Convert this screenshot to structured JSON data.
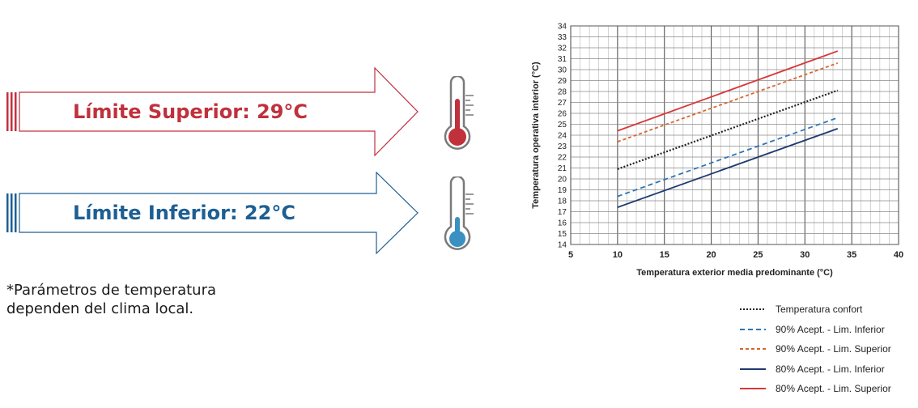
{
  "upper_limit": {
    "label": "Límite Superior: 29°C",
    "color": "#c0313c",
    "icon": "thermometer-high-icon"
  },
  "lower_limit": {
    "label": "Límite Inferior: 22°C",
    "color": "#1d5f93",
    "icon": "thermometer-low-icon"
  },
  "note": {
    "line1": "*Parámetros de temperatura",
    "line2": "dependen del clima local."
  },
  "chart_data": {
    "type": "line",
    "title": "",
    "xlabel": "Temperatura exterior media predominante (°C)",
    "ylabel": "Temperatura operativa interior (°C)",
    "xlim": [
      5,
      40
    ],
    "ylim": [
      14,
      34
    ],
    "xticks": [
      5,
      10,
      15,
      20,
      25,
      30,
      35,
      40
    ],
    "yticks": [
      14,
      15,
      16,
      17,
      18,
      19,
      20,
      21,
      22,
      23,
      24,
      25,
      26,
      27,
      28,
      29,
      30,
      31,
      32,
      33,
      34
    ],
    "grid": true,
    "legend_position": "bottom-right",
    "series": [
      {
        "name": "Temperatura confort",
        "x": [
          10,
          33.5
        ],
        "y": [
          20.9,
          28.1
        ],
        "color": "#222222",
        "style": "dotted"
      },
      {
        "name": "90% Acept. - Lim. Inferior",
        "x": [
          10,
          33.5
        ],
        "y": [
          18.4,
          25.6
        ],
        "color": "#2e75b6",
        "style": "dashed"
      },
      {
        "name": "90% Acept. - Lim. Superior",
        "x": [
          10,
          33.5
        ],
        "y": [
          23.4,
          30.6
        ],
        "color": "#d9652c",
        "style": "dashed-short"
      },
      {
        "name": "80% Acept. - Lim. Inferior",
        "x": [
          10,
          33.5
        ],
        "y": [
          17.4,
          24.6
        ],
        "color": "#1f3b70",
        "style": "solid"
      },
      {
        "name": "80% Acept. - Lim. Superior",
        "x": [
          10,
          33.5
        ],
        "y": [
          24.4,
          31.7
        ],
        "color": "#d9383a",
        "style": "solid"
      }
    ]
  }
}
